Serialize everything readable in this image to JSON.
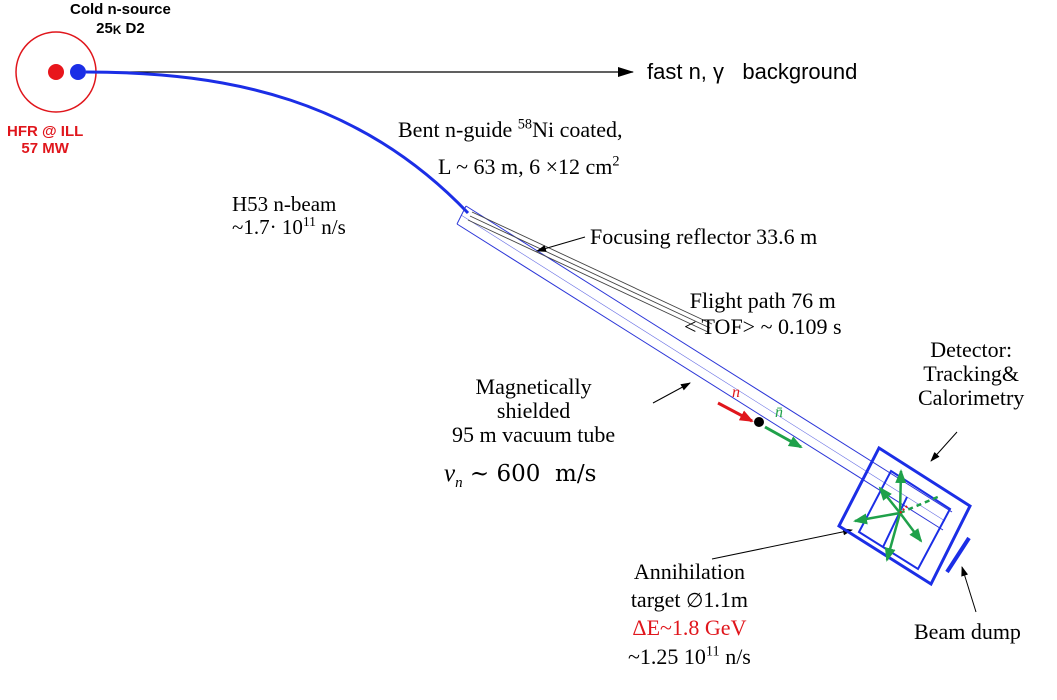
{
  "colors": {
    "source_ring": "#e0161c",
    "core_red": "#e8161c",
    "core_blue": "#1b2ee6",
    "guide_blue": "#1b2ee6",
    "outline_blue": "#2b35d8",
    "n_red": "#e0161c",
    "nbar_green": "#1fa14a",
    "label_red": "#e0161c",
    "black": "#000000"
  },
  "labels": {
    "cold_source_line1": "Cold n-source",
    "cold_source_temp": "25",
    "cold_source_unit": "K",
    "cold_source_gas": "D2",
    "reactor_line1": "HFR @ ILL",
    "reactor_line2": "57 MW",
    "background": "fast n, γ   background",
    "guide_line1_prefix": "Bent n-guide ",
    "guide_isotope_mass": "58",
    "guide_line1_suffix": "Ni coated,",
    "guide_line2_prefix": "L ~ 63 m, 6 ×12 cm",
    "guide_line2_sup": "2",
    "beam_line1": "H53 n-beam",
    "beam_line2_prefix": "~1.7· 10",
    "beam_line2_sup": "11",
    "beam_line2_suffix": " n/s",
    "focusing": "Focusing reflector 33.6 m",
    "flight_line1": "Flight path 76 m",
    "flight_line2": "< TOF> ~ 0.109 s",
    "detector_line1": "Detector:",
    "detector_line2": "Tracking&",
    "detector_line3": "Calorimetry",
    "tube_line1": "Magnetically",
    "tube_line2": "shielded",
    "tube_line3": "95 m vacuum tube",
    "velocity_symbol": "v",
    "velocity_sub": "n",
    "velocity_value": " ~ 600  m/s",
    "n_symbol": "n",
    "nbar_symbol": "n̄",
    "target_line1": "Annihilation",
    "target_line2_prefix": "target ",
    "target_diameter_symbol": "∅",
    "target_line2_value": "1.1m",
    "energy": "ΔE~1.8 GeV",
    "rate_prefix": "~1.25 10",
    "rate_sup": "11",
    "rate_suffix": " n/s",
    "beam_dump": "Beam dump"
  }
}
